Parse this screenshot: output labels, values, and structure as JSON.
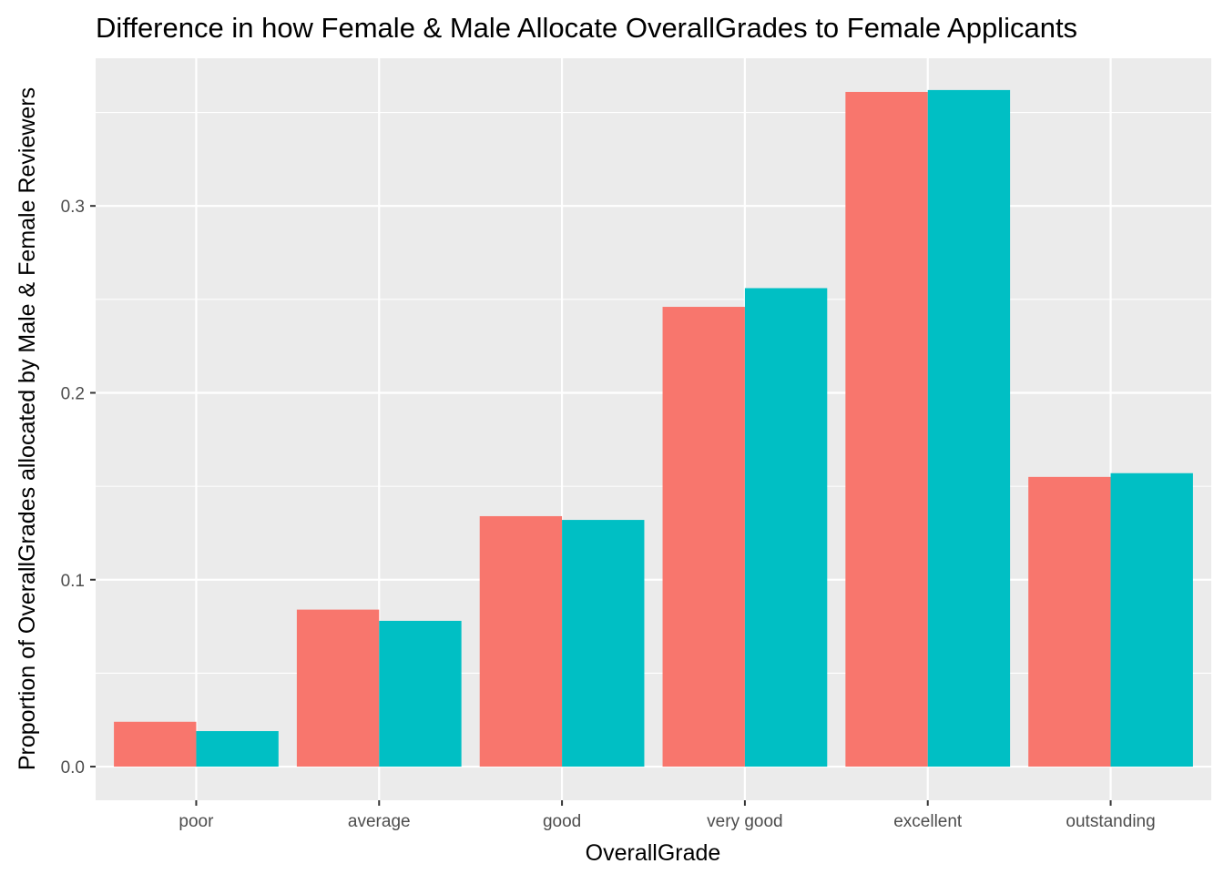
{
  "chart_data": {
    "type": "bar",
    "title": "Difference in how Female & Male Allocate OverallGrades to Female Applicants",
    "xlabel": "OverallGrade",
    "ylabel": "Proportion of OverallGrades allocated by Male & Female Reviewers",
    "categories": [
      "poor",
      "average",
      "good",
      "very good",
      "excellent",
      "outstanding"
    ],
    "series": [
      {
        "values": [
          0.024,
          0.084,
          0.134,
          0.246,
          0.361,
          0.155
        ],
        "color": "#F8766D"
      },
      {
        "values": [
          0.019,
          0.078,
          0.132,
          0.256,
          0.362,
          0.157
        ],
        "color": "#00BFC4"
      }
    ],
    "yticks": [
      0.0,
      0.1,
      0.2,
      0.3
    ],
    "ytick_labels": [
      "0.0",
      "0.1",
      "0.2",
      "0.3"
    ],
    "ylim": [
      -0.018,
      0.379
    ],
    "grid": true,
    "legend": "none",
    "panel_color": "#EBEBEB",
    "grid_color": "#FFFFFF"
  }
}
